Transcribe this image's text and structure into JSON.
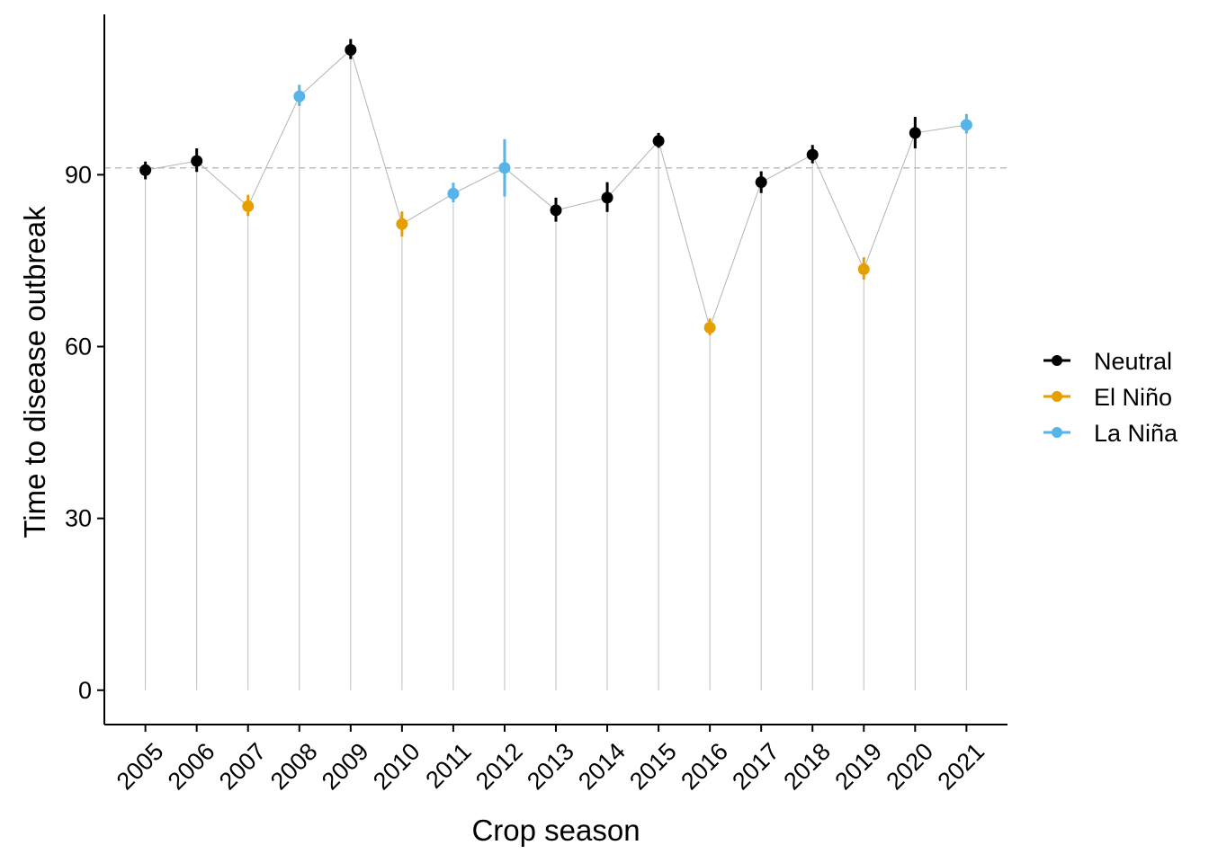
{
  "chart_data": {
    "type": "line",
    "xlabel": "Crop season",
    "ylabel": "Time to disease outbreak",
    "ylim": [
      -6,
      118
    ],
    "y_ticks": [
      0,
      30,
      60,
      90
    ],
    "reference_line": {
      "y": 91.2,
      "style": "dashed"
    },
    "categories": [
      "2005",
      "2006",
      "2007",
      "2008",
      "2009",
      "2010",
      "2011",
      "2012",
      "2013",
      "2014",
      "2015",
      "2016",
      "2017",
      "2018",
      "2019",
      "2020",
      "2021"
    ],
    "points": [
      {
        "year": "2005",
        "value": 90.8,
        "low": 89.2,
        "high": 92.3,
        "phase": "Neutral"
      },
      {
        "year": "2006",
        "value": 92.4,
        "low": 90.5,
        "high": 94.6,
        "phase": "Neutral"
      },
      {
        "year": "2007",
        "value": 84.5,
        "low": 82.8,
        "high": 86.5,
        "phase": "El Niño"
      },
      {
        "year": "2008",
        "value": 103.7,
        "low": 102.0,
        "high": 105.7,
        "phase": "La Niña"
      },
      {
        "year": "2009",
        "value": 111.8,
        "low": 110.2,
        "high": 113.7,
        "phase": "Neutral"
      },
      {
        "year": "2010",
        "value": 81.4,
        "low": 79.2,
        "high": 83.6,
        "phase": "El Niño"
      },
      {
        "year": "2011",
        "value": 86.7,
        "low": 85.2,
        "high": 88.6,
        "phase": "La Niña"
      },
      {
        "year": "2012",
        "value": 91.2,
        "low": 86.2,
        "high": 96.2,
        "phase": "La Niña"
      },
      {
        "year": "2013",
        "value": 83.8,
        "low": 81.8,
        "high": 86.0,
        "phase": "Neutral"
      },
      {
        "year": "2014",
        "value": 86.0,
        "low": 83.5,
        "high": 88.7,
        "phase": "Neutral"
      },
      {
        "year": "2015",
        "value": 95.9,
        "low": 94.7,
        "high": 97.3,
        "phase": "Neutral"
      },
      {
        "year": "2016",
        "value": 63.3,
        "low": 62.0,
        "high": 64.9,
        "phase": "El Niño"
      },
      {
        "year": "2017",
        "value": 88.7,
        "low": 86.8,
        "high": 90.6,
        "phase": "Neutral"
      },
      {
        "year": "2018",
        "value": 93.5,
        "low": 92.0,
        "high": 95.2,
        "phase": "Neutral"
      },
      {
        "year": "2019",
        "value": 73.5,
        "low": 71.7,
        "high": 75.6,
        "phase": "El Niño"
      },
      {
        "year": "2020",
        "value": 97.3,
        "low": 94.6,
        "high": 100.1,
        "phase": "Neutral"
      },
      {
        "year": "2021",
        "value": 98.7,
        "low": 97.2,
        "high": 100.6,
        "phase": "La Niña"
      }
    ],
    "legend": {
      "position": "right",
      "entries": [
        {
          "name": "Neutral",
          "color": "#000000"
        },
        {
          "name": "El Niño",
          "color": "#E69F00"
        },
        {
          "name": "La Niña",
          "color": "#56B4E9"
        }
      ]
    },
    "colors": {
      "connector_line": "#b3b3b3",
      "drop_line": "#bdbdbd",
      "reference_line": "#bdbdbd",
      "axis": "#000000"
    }
  }
}
